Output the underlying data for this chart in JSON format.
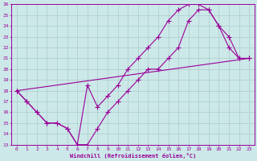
{
  "bg_color": "#cce8e8",
  "line_color": "#990099",
  "grid_color": "#aacccc",
  "xlabel": "Windchill (Refroidissement éolien,°C)",
  "xlabel_color": "#990099",
  "tick_color": "#990099",
  "xlim": [
    -0.5,
    23.5
  ],
  "ylim": [
    13,
    26
  ],
  "yticks": [
    13,
    14,
    15,
    16,
    17,
    18,
    19,
    20,
    21,
    22,
    23,
    24,
    25,
    26
  ],
  "xticks": [
    0,
    1,
    2,
    3,
    4,
    5,
    6,
    7,
    8,
    9,
    10,
    11,
    12,
    13,
    14,
    15,
    16,
    17,
    18,
    19,
    20,
    21,
    22,
    23
  ],
  "line1_x": [
    0,
    1,
    2,
    3,
    4,
    5,
    6,
    7,
    8,
    9,
    10,
    11,
    12,
    13,
    14,
    15,
    16,
    17,
    18,
    19,
    20,
    21,
    22,
    23
  ],
  "line1_y": [
    18,
    17,
    16,
    15,
    15,
    14.5,
    13,
    13,
    14.5,
    16,
    17,
    18,
    19,
    20,
    20,
    21,
    22,
    24.5,
    25.5,
    25.5,
    24,
    23,
    21,
    21
  ],
  "line2_x": [
    0,
    1,
    2,
    3,
    4,
    5,
    6,
    7,
    8,
    9,
    10,
    11,
    12,
    13,
    14,
    15,
    16,
    17,
    18,
    19,
    20,
    21,
    22,
    23
  ],
  "line2_y": [
    18,
    17,
    16,
    15,
    15,
    14.5,
    13,
    18.5,
    16.5,
    17.5,
    18.5,
    20,
    21,
    22,
    23,
    24.5,
    25.5,
    26,
    26,
    25.5,
    24,
    22,
    21,
    21
  ],
  "line3_x": [
    0,
    23
  ],
  "line3_y": [
    18,
    21
  ]
}
